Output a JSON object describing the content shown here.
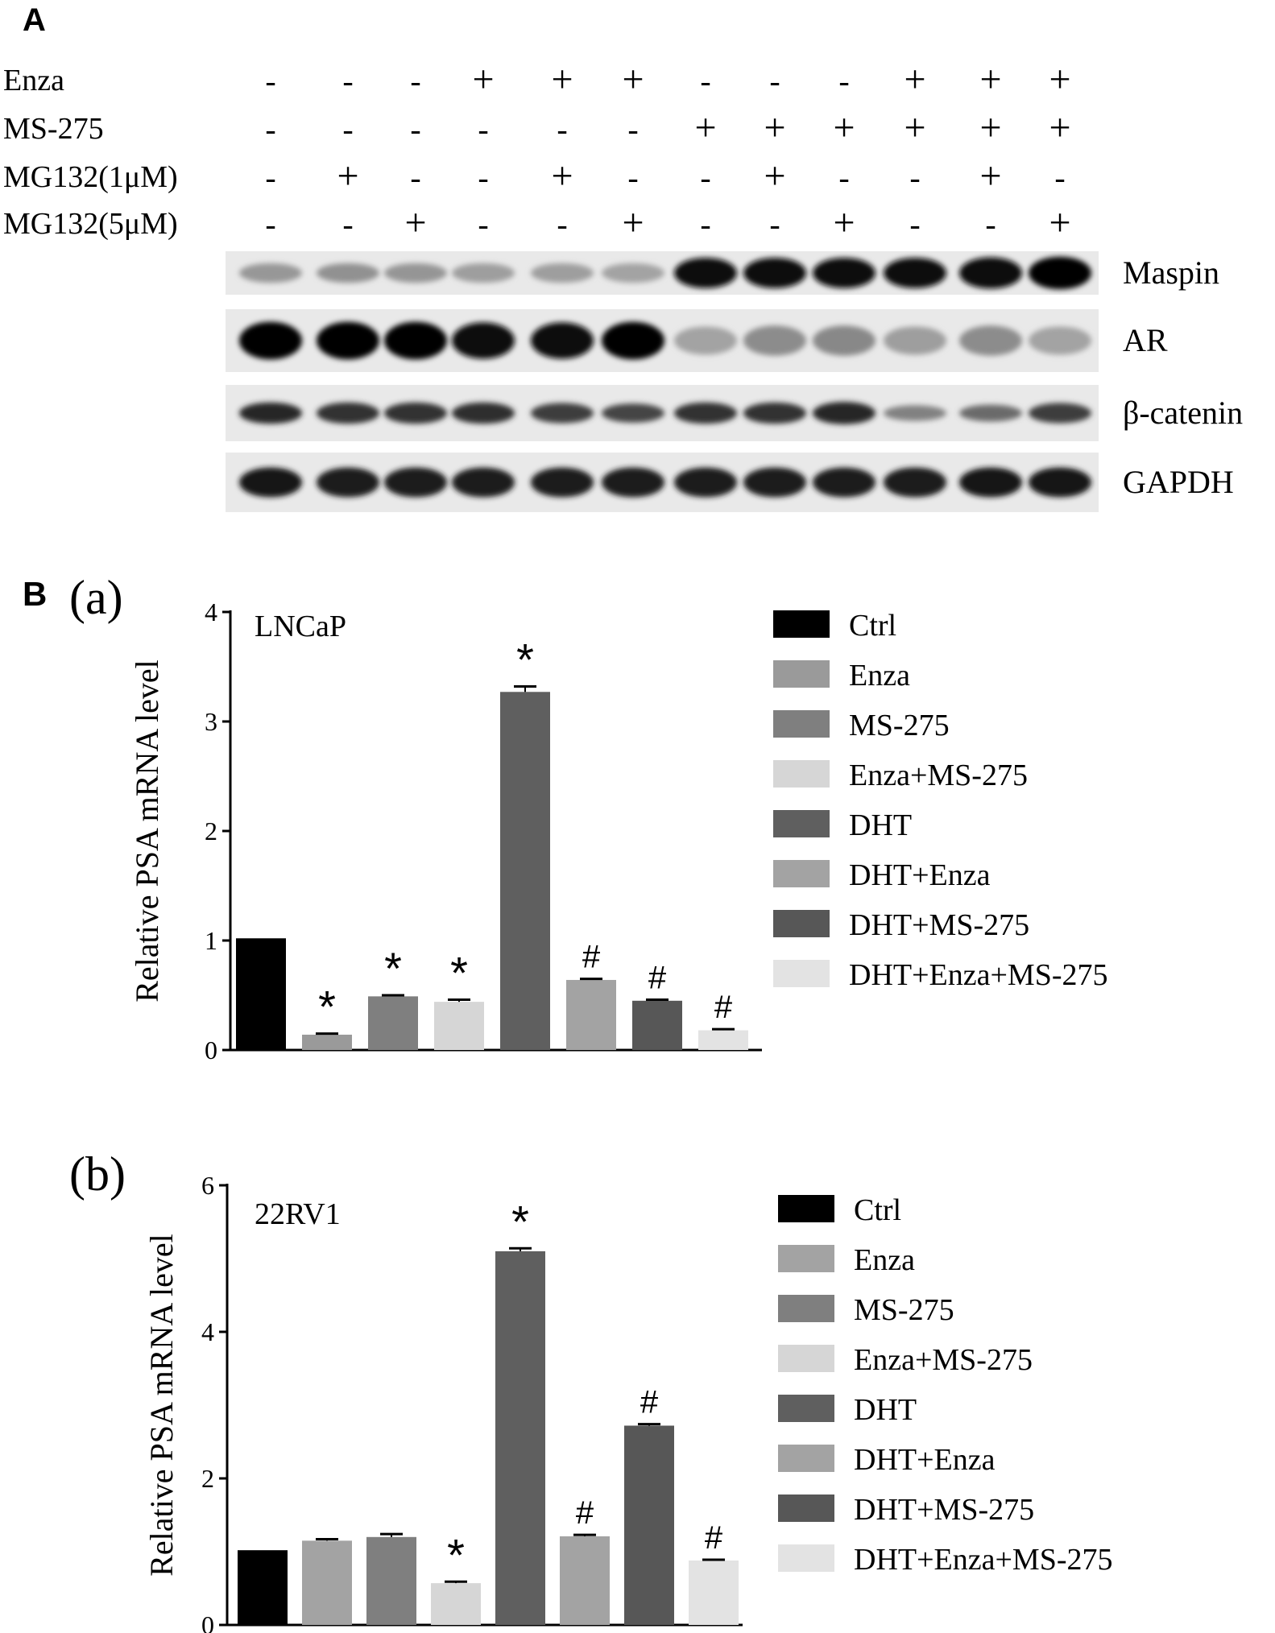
{
  "panel_a": {
    "letter": "A",
    "treatments": [
      {
        "name": "Enza",
        "signs": [
          "-",
          "-",
          "-",
          "+",
          "+",
          "+",
          "-",
          "-",
          "-",
          "+",
          "+",
          "+"
        ]
      },
      {
        "name": "MS-275",
        "signs": [
          "-",
          "-",
          "-",
          "-",
          "-",
          "-",
          "+",
          "+",
          "+",
          "+",
          "+",
          "+"
        ]
      },
      {
        "name": "MG132(1μM)",
        "signs": [
          "-",
          "+",
          "-",
          "-",
          "+",
          "-",
          "-",
          "+",
          "-",
          "-",
          "+",
          "-"
        ]
      },
      {
        "name": "MG132(5μM)",
        "signs": [
          "-",
          "-",
          "+",
          "-",
          "-",
          "+",
          "-",
          "-",
          "+",
          "-",
          "-",
          "+"
        ]
      }
    ],
    "blots": [
      {
        "label": "Maspin",
        "intensity": [
          0.35,
          0.38,
          0.36,
          0.32,
          0.32,
          0.3,
          0.95,
          0.95,
          0.95,
          0.95,
          0.97,
          1.0
        ],
        "band_h": [
          0.45,
          0.45,
          0.45,
          0.45,
          0.45,
          0.45,
          0.7,
          0.7,
          0.7,
          0.7,
          0.72,
          0.75
        ]
      },
      {
        "label": "AR",
        "intensity": [
          1.0,
          1.0,
          1.0,
          0.95,
          0.95,
          1.0,
          0.3,
          0.4,
          0.42,
          0.32,
          0.4,
          0.3
        ],
        "band_h": [
          0.6,
          0.6,
          0.6,
          0.58,
          0.58,
          0.6,
          0.45,
          0.48,
          0.48,
          0.45,
          0.48,
          0.45
        ]
      },
      {
        "label": "β-catenin",
        "intensity": [
          0.85,
          0.8,
          0.8,
          0.82,
          0.75,
          0.72,
          0.8,
          0.8,
          0.85,
          0.45,
          0.55,
          0.75
        ],
        "band_h": [
          0.38,
          0.38,
          0.38,
          0.38,
          0.36,
          0.34,
          0.38,
          0.38,
          0.4,
          0.28,
          0.3,
          0.36
        ]
      },
      {
        "label": "GAPDH",
        "intensity": [
          0.92,
          0.9,
          0.9,
          0.9,
          0.9,
          0.9,
          0.9,
          0.9,
          0.9,
          0.9,
          0.92,
          0.92
        ],
        "band_h": [
          0.5,
          0.5,
          0.5,
          0.5,
          0.5,
          0.5,
          0.5,
          0.5,
          0.5,
          0.5,
          0.5,
          0.5
        ]
      }
    ]
  },
  "panel_b_letter": "B",
  "chart_data": [
    {
      "type": "bar",
      "panel": "(a)",
      "cell_line": "LNCaP",
      "ylabel": "Relative PSA mRNA level",
      "ylim": [
        0,
        4
      ],
      "yticks": [
        0,
        1,
        2,
        3,
        4
      ],
      "categories": [
        "Ctrl",
        "Enza",
        "MS-275",
        "Enza+MS-275",
        "DHT",
        "DHT+Enza",
        "DHT+MS-275",
        "DHT+Enza+MS-275"
      ],
      "values": [
        1.02,
        0.14,
        0.49,
        0.44,
        3.27,
        0.64,
        0.45,
        0.18
      ],
      "errors": [
        0,
        0.01,
        0.01,
        0.02,
        0.05,
        0.01,
        0.01,
        0.01
      ],
      "annotations": [
        "",
        "*",
        "*",
        "*",
        "*",
        "#",
        "#",
        "#"
      ],
      "colors": [
        "#000000",
        "#9a9a9a",
        "#7f7f7f",
        "#d6d6d6",
        "#5f5f5f",
        "#a3a3a3",
        "#575757",
        "#e3e3e3"
      ],
      "legend_position": "right"
    },
    {
      "type": "bar",
      "panel": "(b)",
      "cell_line": "22RV1",
      "ylabel": "Relative PSA mRNA level",
      "ylim": [
        0,
        6
      ],
      "yticks": [
        0,
        2,
        4,
        6
      ],
      "categories": [
        "Ctrl",
        "Enza",
        "MS-275",
        "Enza+MS-275",
        "DHT",
        "DHT+Enza",
        "DHT+MS-275",
        "DHT+Enza+MS-275"
      ],
      "values": [
        1.02,
        1.15,
        1.2,
        0.57,
        5.1,
        1.21,
        2.72,
        0.88
      ],
      "errors": [
        0,
        0.02,
        0.04,
        0.02,
        0.04,
        0.02,
        0.02,
        0.01
      ],
      "annotations": [
        "",
        "",
        "",
        "*",
        "*",
        "#",
        "#",
        "#"
      ],
      "colors": [
        "#000000",
        "#a3a3a3",
        "#7f7f7f",
        "#d6d6d6",
        "#5f5f5f",
        "#a3a3a3",
        "#575757",
        "#e3e3e3"
      ],
      "legend_position": "right"
    }
  ]
}
